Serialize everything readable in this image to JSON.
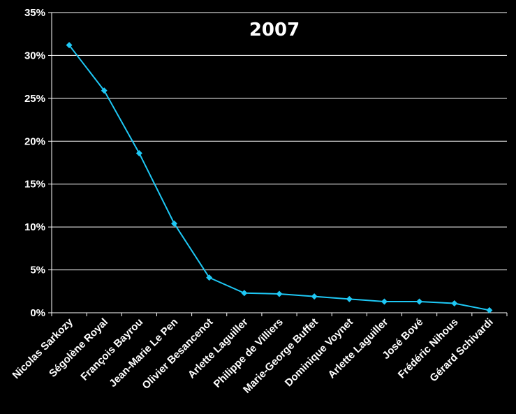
{
  "chart_data": {
    "type": "line",
    "title": "2007",
    "xlabel": "",
    "ylabel": "",
    "ylim": [
      0,
      35
    ],
    "y_tick_step": 5,
    "y_tick_format": "percent",
    "grid": true,
    "legend": "none",
    "categories": [
      "Nicolas Sarkozy",
      "Ségolène Royal",
      "François Bayrou",
      "Jean-Marie Le Pen",
      "Olivier Besancenot",
      "Arlette Laguiller",
      "Philippe de Villiers",
      "Marie-George Buffet",
      "Dominique Voynet",
      "Arlette Laguiller",
      "José Bové",
      "Frédéric Nihous",
      "Gérard Schivardi"
    ],
    "series": [
      {
        "values": [
          31.2,
          25.9,
          18.6,
          10.4,
          4.1,
          2.3,
          2.2,
          1.9,
          1.6,
          1.3,
          1.3,
          1.1,
          0.3
        ],
        "color": "#1ec8f5"
      }
    ],
    "y_ticks": [
      "0%",
      "5%",
      "10%",
      "15%",
      "20%",
      "25%",
      "30%",
      "35%"
    ]
  },
  "colors": {
    "background": "#000000",
    "grid": "#ffffff",
    "text": "#ffffff",
    "line": "#1ec8f5"
  }
}
